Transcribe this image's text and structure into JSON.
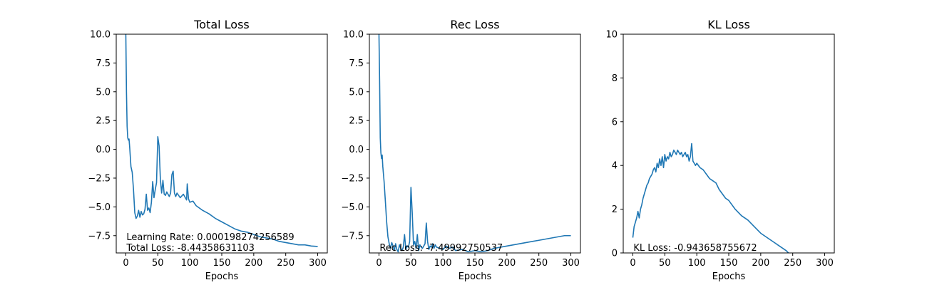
{
  "chart_data": [
    {
      "type": "line",
      "title": "Total Loss",
      "xlabel": "Epochs",
      "ylabel": "",
      "xlim": [
        -15,
        315
      ],
      "ylim": [
        -9.0,
        10.0
      ],
      "xticks": [
        0,
        50,
        100,
        150,
        200,
        250,
        300
      ],
      "xtick_labels": [
        "0",
        "50",
        "100",
        "150",
        "200",
        "250",
        "300"
      ],
      "yticks": [
        -7.5,
        -5.0,
        -2.5,
        0.0,
        2.5,
        5.0,
        7.5,
        10.0
      ],
      "ytick_labels": [
        "−7.5",
        "−5.0",
        "−2.5",
        "0.0",
        "2.5",
        "5.0",
        "7.5",
        "10.0"
      ],
      "grid": false,
      "color": "#1f77b4",
      "annotations": [
        {
          "text": "Learning Rate: 0.000198274256589",
          "x": 1,
          "y": -7.9
        },
        {
          "text": "Total Loss: -8.44358631103",
          "x": 1,
          "y": -8.8
        }
      ],
      "series": [
        {
          "x": [
            0,
            1,
            2,
            3,
            4,
            5,
            6,
            8,
            10,
            12,
            14,
            16,
            18,
            20,
            22,
            24,
            26,
            28,
            30,
            32,
            34,
            36,
            38,
            40,
            42,
            44,
            46,
            48,
            50,
            52,
            54,
            56,
            58,
            60,
            62,
            64,
            66,
            68,
            70,
            72,
            74,
            76,
            78,
            80,
            85,
            90,
            95,
            96,
            98,
            100,
            105,
            110,
            120,
            130,
            140,
            150,
            160,
            170,
            180,
            190,
            200,
            210,
            220,
            230,
            240,
            250,
            260,
            270,
            280,
            290,
            300
          ],
          "values": [
            10.0,
            5.0,
            2.0,
            1.0,
            0.8,
            0.9,
            0.2,
            -1.5,
            -2.0,
            -3.5,
            -5.5,
            -6.0,
            -5.8,
            -5.3,
            -5.9,
            -5.4,
            -5.7,
            -5.6,
            -5.2,
            -3.9,
            -5.3,
            -5.1,
            -5.5,
            -4.6,
            -2.8,
            -4.2,
            -3.5,
            -2.9,
            1.1,
            0.3,
            -2.6,
            -3.8,
            -2.7,
            -3.9,
            -4.0,
            -3.7,
            -3.9,
            -4.1,
            -3.8,
            -2.2,
            -1.9,
            -3.8,
            -4.1,
            -3.8,
            -4.2,
            -3.9,
            -4.4,
            -3.0,
            -4.3,
            -4.6,
            -4.5,
            -4.9,
            -5.3,
            -5.6,
            -6.0,
            -6.3,
            -6.6,
            -6.9,
            -7.1,
            -7.2,
            -7.4,
            -7.6,
            -7.7,
            -7.8,
            -8.0,
            -8.1,
            -8.2,
            -8.3,
            -8.3,
            -8.4,
            -8.44
          ]
        }
      ]
    },
    {
      "type": "line",
      "title": "Rec Loss",
      "xlabel": "Epochs",
      "ylabel": "",
      "xlim": [
        -15,
        315
      ],
      "ylim": [
        -9.0,
        10.0
      ],
      "xticks": [
        0,
        50,
        100,
        150,
        200,
        250,
        300
      ],
      "xtick_labels": [
        "0",
        "50",
        "100",
        "150",
        "200",
        "250",
        "300"
      ],
      "yticks": [
        -7.5,
        -5.0,
        -2.5,
        0.0,
        2.5,
        5.0,
        7.5,
        10.0
      ],
      "ytick_labels": [
        "−7.5",
        "−5.0",
        "−2.5",
        "0.0",
        "2.5",
        "5.0",
        "7.5",
        "10.0"
      ],
      "grid": false,
      "color": "#1f77b4",
      "annotations": [
        {
          "text": "Rec Loss: -7.49992750537",
          "x": 1,
          "y": -8.8
        }
      ],
      "series": [
        {
          "x": [
            0,
            1,
            2,
            3,
            4,
            5,
            6,
            8,
            10,
            12,
            14,
            16,
            18,
            20,
            22,
            24,
            26,
            28,
            30,
            32,
            34,
            36,
            38,
            40,
            42,
            44,
            46,
            48,
            50,
            52,
            54,
            56,
            58,
            60,
            62,
            64,
            66,
            68,
            70,
            72,
            74,
            76,
            78,
            80,
            82,
            84,
            86,
            88,
            90,
            95,
            100,
            105,
            110,
            115,
            120,
            130,
            140,
            150,
            160,
            170,
            180,
            190,
            200,
            210,
            220,
            230,
            240,
            250,
            260,
            270,
            280,
            290,
            300
          ],
          "values": [
            10.0,
            6.0,
            1.0,
            -0.3,
            -0.8,
            -0.5,
            -1.5,
            -2.8,
            -4.5,
            -6.3,
            -7.6,
            -8.2,
            -8.6,
            -8.1,
            -8.4,
            -8.8,
            -8.2,
            -8.7,
            -8.9,
            -8.3,
            -8.6,
            -8.8,
            -8.5,
            -7.4,
            -8.7,
            -8.4,
            -8.5,
            -8.0,
            -3.3,
            -5.5,
            -8.3,
            -8.0,
            -8.6,
            -7.4,
            -8.8,
            -8.3,
            -8.5,
            -8.6,
            -8.4,
            -8.2,
            -6.4,
            -8.0,
            -8.7,
            -8.4,
            -8.5,
            -8.2,
            -8.6,
            -8.3,
            -8.5,
            -8.6,
            -8.7,
            -8.4,
            -8.6,
            -8.5,
            -8.8,
            -8.7,
            -8.9,
            -8.8,
            -8.9,
            -8.8,
            -8.6,
            -8.5,
            -8.4,
            -8.3,
            -8.2,
            -8.1,
            -8.0,
            -7.9,
            -7.8,
            -7.7,
            -7.6,
            -7.5,
            -7.5
          ]
        }
      ]
    },
    {
      "type": "line",
      "title": "KL Loss",
      "xlabel": "Epochs",
      "ylabel": "",
      "xlim": [
        -15,
        315
      ],
      "ylim": [
        0,
        10
      ],
      "xticks": [
        0,
        50,
        100,
        150,
        200,
        250,
        300
      ],
      "xtick_labels": [
        "0",
        "50",
        "100",
        "150",
        "200",
        "250",
        "300"
      ],
      "yticks": [
        0,
        2,
        4,
        6,
        8,
        10
      ],
      "ytick_labels": [
        "0",
        "2",
        "4",
        "6",
        "8",
        "10"
      ],
      "grid": false,
      "color": "#1f77b4",
      "annotations": [
        {
          "text": "KL Loss: -0.943658755672",
          "x": 1,
          "y": 0.1
        }
      ],
      "series": [
        {
          "x": [
            0,
            2,
            4,
            6,
            8,
            10,
            12,
            14,
            16,
            18,
            20,
            22,
            24,
            26,
            28,
            30,
            32,
            34,
            36,
            38,
            40,
            42,
            44,
            46,
            48,
            50,
            52,
            54,
            56,
            58,
            60,
            62,
            64,
            66,
            68,
            70,
            72,
            74,
            76,
            78,
            80,
            82,
            84,
            86,
            88,
            90,
            92,
            94,
            96,
            98,
            100,
            105,
            110,
            115,
            120,
            125,
            130,
            135,
            140,
            145,
            150,
            160,
            170,
            180,
            190,
            200,
            210,
            220,
            230,
            240,
            250,
            255,
            260
          ],
          "values": [
            0.7,
            1.2,
            1.4,
            1.6,
            1.9,
            1.6,
            2.0,
            2.2,
            2.5,
            2.7,
            2.9,
            3.1,
            3.2,
            3.4,
            3.5,
            3.6,
            3.8,
            3.9,
            3.7,
            4.1,
            3.9,
            4.3,
            4.0,
            4.4,
            3.9,
            4.5,
            4.2,
            4.4,
            4.3,
            4.6,
            4.4,
            4.5,
            4.7,
            4.6,
            4.5,
            4.7,
            4.6,
            4.5,
            4.6,
            4.4,
            4.5,
            4.6,
            4.4,
            4.5,
            4.2,
            4.4,
            5.0,
            4.2,
            4.1,
            4.0,
            4.1,
            3.9,
            3.8,
            3.6,
            3.4,
            3.3,
            3.2,
            2.9,
            2.7,
            2.5,
            2.4,
            2.0,
            1.7,
            1.5,
            1.2,
            0.9,
            0.7,
            0.5,
            0.3,
            0.1,
            -0.2,
            -0.4,
            -0.6
          ]
        }
      ]
    }
  ]
}
